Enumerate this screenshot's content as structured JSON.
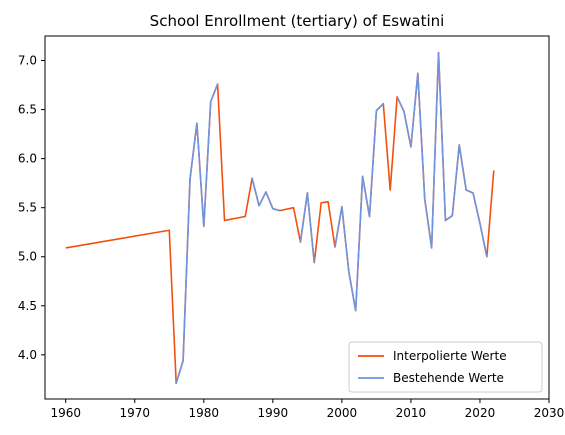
{
  "chart_data": {
    "type": "line",
    "title": "School Enrollment (tertiary) of Eswatini",
    "xlabel": "",
    "ylabel": "",
    "xlim": [
      1957,
      2030
    ],
    "ylim": [
      3.55,
      7.25
    ],
    "xticks": [
      1960,
      1970,
      1980,
      1990,
      2000,
      2010,
      2020,
      2030
    ],
    "xtick_labels": [
      "1960",
      "1970",
      "1980",
      "1990",
      "2000",
      "2010",
      "2020",
      "2030"
    ],
    "yticks": [
      4.0,
      4.5,
      5.0,
      5.5,
      6.0,
      6.5,
      7.0
    ],
    "ytick_labels": [
      "4.0",
      "4.5",
      "5.0",
      "5.5",
      "6.0",
      "6.5",
      "7.0"
    ],
    "grid": false,
    "legend_position": "lower-right",
    "series": [
      {
        "name": "Interpolierte Werte",
        "color": "#f2500f",
        "x": [
          1960,
          1975,
          1976,
          1977,
          1978,
          1979,
          1980,
          1981,
          1982,
          1983,
          1986,
          1987,
          1988,
          1989,
          1990,
          1991,
          1993,
          1994,
          1995,
          1996,
          1997,
          1998,
          1999,
          2000,
          2001,
          2002,
          2003,
          2004,
          2005,
          2006,
          2007,
          2008,
          2009,
          2010,
          2011,
          2012,
          2013,
          2014,
          2015,
          2016,
          2017,
          2018,
          2019,
          2020,
          2021,
          2022
        ],
        "y": [
          5.09,
          5.27,
          3.71,
          3.94,
          5.79,
          6.36,
          5.31,
          6.58,
          6.76,
          5.37,
          5.41,
          5.8,
          5.52,
          5.66,
          5.49,
          5.47,
          5.5,
          5.15,
          5.65,
          4.94,
          5.55,
          5.56,
          5.1,
          5.51,
          4.85,
          4.45,
          5.82,
          5.41,
          6.49,
          6.56,
          5.68,
          6.63,
          6.48,
          6.12,
          6.87,
          5.59,
          5.09,
          7.08,
          5.37,
          5.42,
          6.14,
          5.68,
          5.65,
          5.34,
          5.0,
          5.88
        ]
      },
      {
        "name": "Bestehende Werte",
        "color": "#6f95e0",
        "segments": [
          {
            "x": [
              1976,
              1977,
              1978,
              1979,
              1980,
              1981,
              1982
            ],
            "y": [
              3.71,
              3.94,
              5.79,
              6.36,
              5.31,
              6.58,
              6.76
            ]
          },
          {
            "x": [
              1987,
              1988,
              1989,
              1990,
              1991
            ],
            "y": [
              5.8,
              5.52,
              5.66,
              5.49,
              5.47
            ]
          },
          {
            "x": [
              1994,
              1995,
              1996
            ],
            "y": [
              5.15,
              5.65,
              4.94
            ]
          },
          {
            "x": [
              1999,
              2000,
              2001,
              2002,
              2003,
              2004,
              2005,
              2006
            ],
            "y": [
              5.1,
              5.51,
              4.85,
              4.45,
              5.82,
              5.41,
              6.49,
              6.56
            ]
          },
          {
            "x": [
              2008,
              2009,
              2010,
              2011,
              2012,
              2013,
              2014,
              2015,
              2016,
              2017,
              2018,
              2019,
              2020,
              2021
            ],
            "y": [
              6.63,
              6.48,
              6.12,
              6.87,
              5.59,
              5.09,
              7.08,
              5.37,
              5.42,
              6.14,
              5.68,
              5.65,
              5.34,
              5.0
            ]
          }
        ]
      }
    ]
  }
}
